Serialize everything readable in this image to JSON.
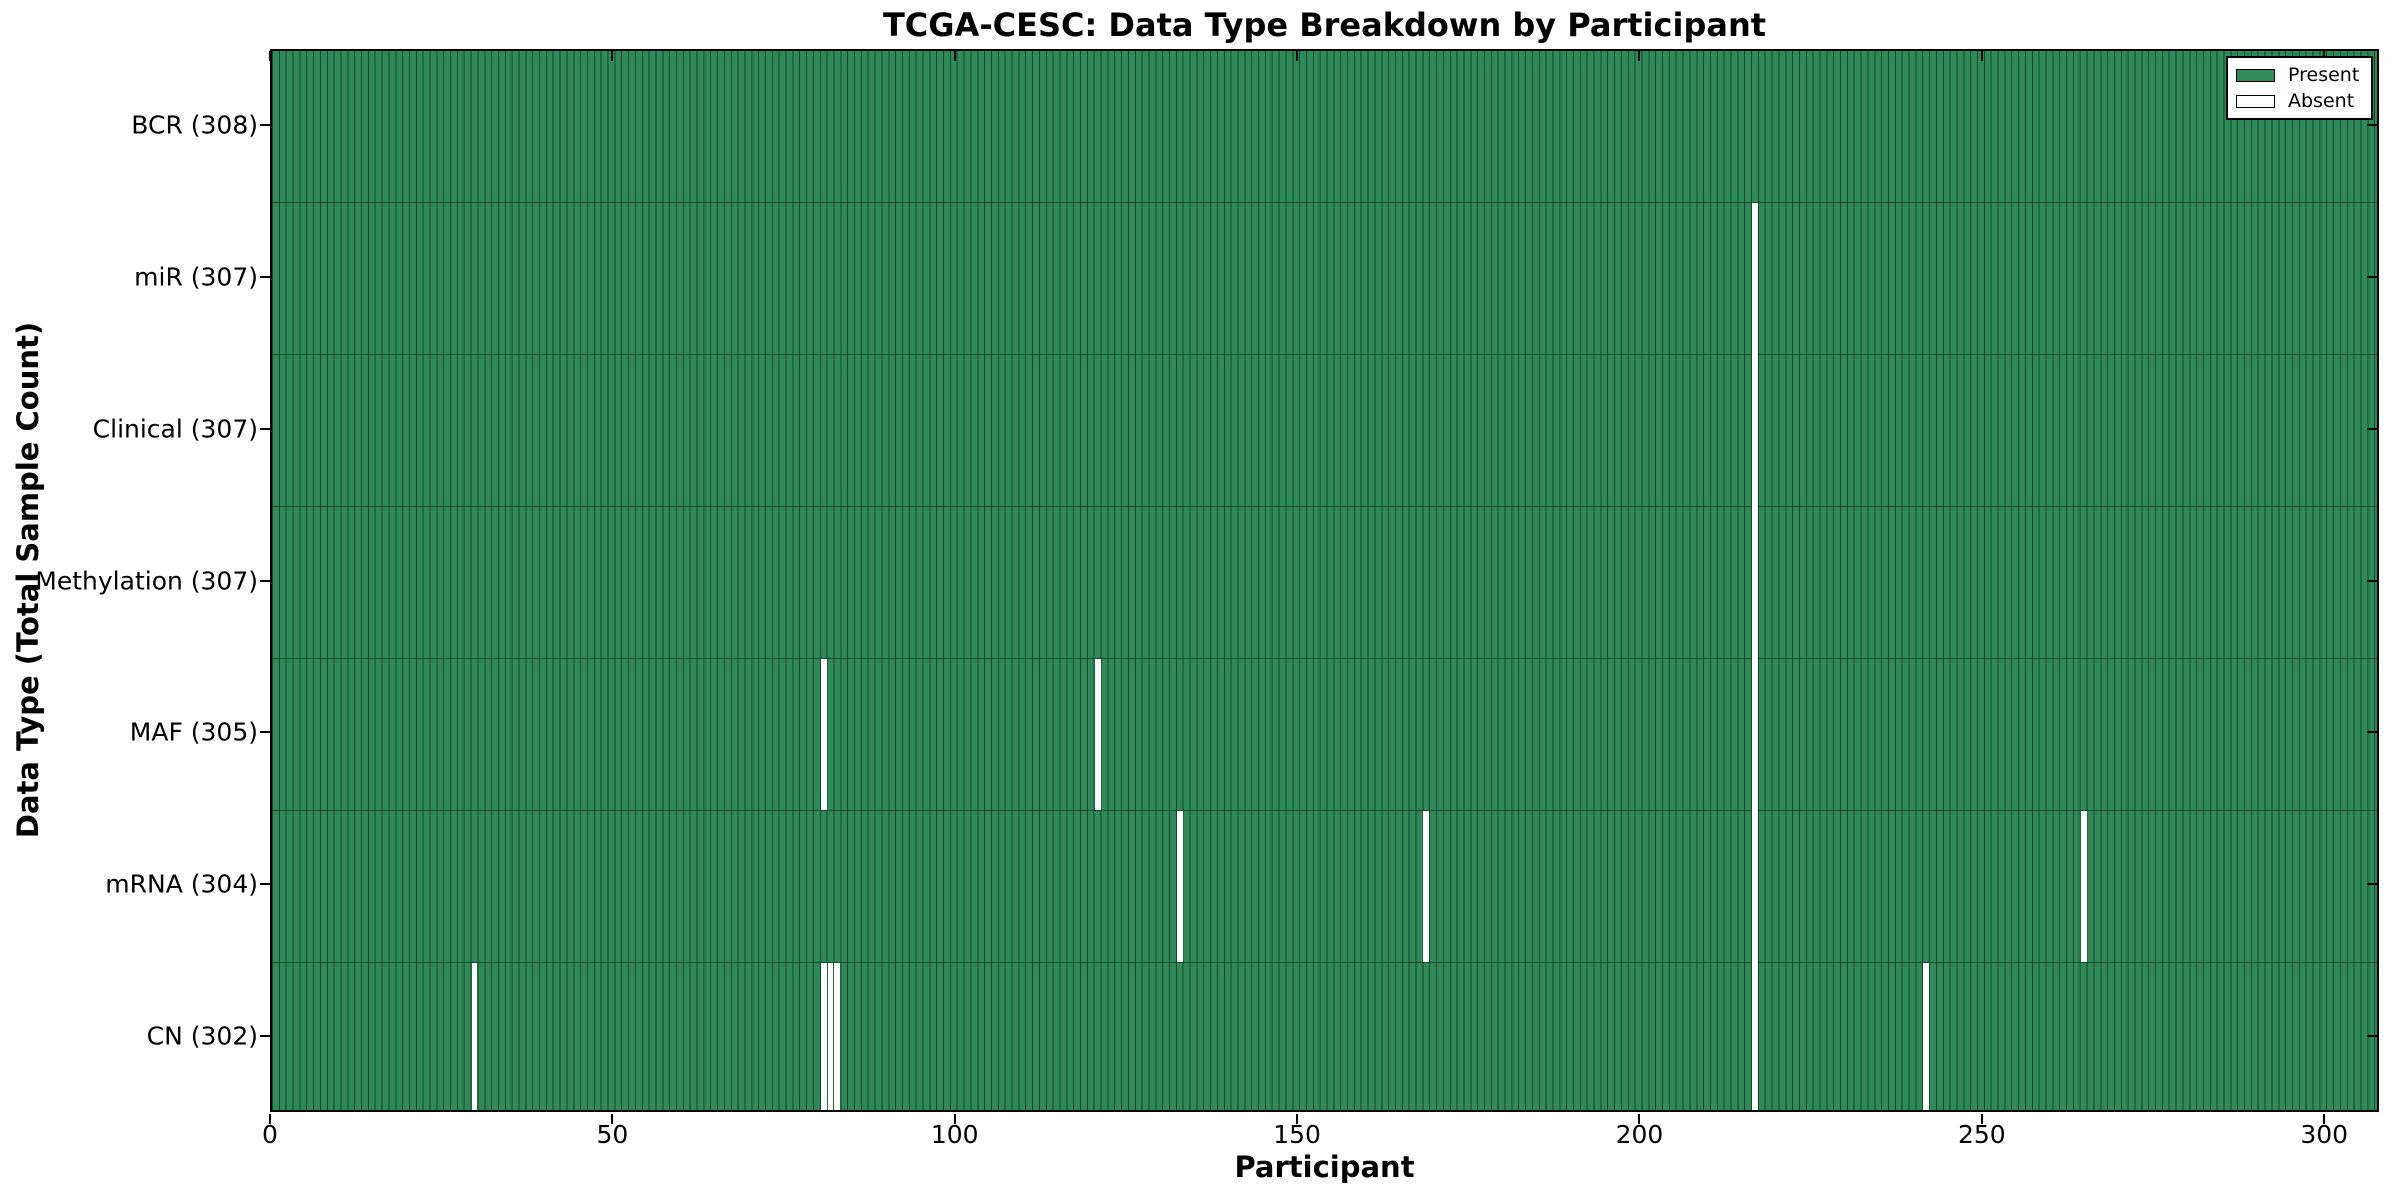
{
  "figure": {
    "title": "TCGA-CESC: Data Type Breakdown by Participant",
    "xlabel": "Participant",
    "ylabel": "Data Type (Total Sample Count)"
  },
  "legend": {
    "present_label": "Present",
    "absent_label": "Absent"
  },
  "colors": {
    "present": "#2E8B57",
    "absent": "#FFFFFF",
    "cell_edge": "rgba(0,0,0,0.5)",
    "row_boundary": "rgba(0,0,0,0.45)",
    "frame": "#000000"
  },
  "chart_data": {
    "type": "heatmap",
    "title": "TCGA-CESC: Data Type Breakdown by Participant",
    "xlabel": "Participant",
    "ylabel": "Data Type (Total Sample Count)",
    "legend_position": "upper right",
    "grid": false,
    "participants_total": 308,
    "x_range": [
      0,
      308
    ],
    "x_ticks": [
      0,
      50,
      100,
      150,
      200,
      250,
      300
    ],
    "legend_entries": [
      {
        "label": "Present",
        "color": "#2E8B57"
      },
      {
        "label": "Absent",
        "color": "#FFFFFF"
      }
    ],
    "rows": [
      {
        "label": "BCR (308)",
        "data_type": "BCR",
        "present_count": 308,
        "absent_count": 0,
        "absent_participants": []
      },
      {
        "label": "miR (307)",
        "data_type": "miR",
        "present_count": 307,
        "absent_count": 1,
        "absent_participants": [
          216
        ]
      },
      {
        "label": "Clinical (307)",
        "data_type": "Clinical",
        "present_count": 307,
        "absent_count": 1,
        "absent_participants": [
          216
        ]
      },
      {
        "label": "Methylation (307)",
        "data_type": "Methylation",
        "present_count": 307,
        "absent_count": 1,
        "absent_participants": [
          216
        ]
      },
      {
        "label": "MAF (305)",
        "data_type": "MAF",
        "present_count": 305,
        "absent_count": 3,
        "absent_participants": [
          80,
          120,
          216
        ]
      },
      {
        "label": "mRNA (304)",
        "data_type": "mRNA",
        "present_count": 304,
        "absent_count": 4,
        "absent_participants": [
          132,
          168,
          216,
          264
        ]
      },
      {
        "label": "CN (302)",
        "data_type": "CN",
        "present_count": 302,
        "absent_count": 6,
        "absent_participants": [
          29,
          80,
          81,
          82,
          216,
          241
        ]
      }
    ]
  }
}
